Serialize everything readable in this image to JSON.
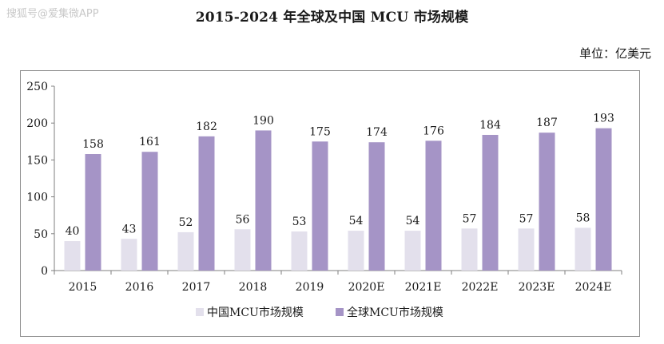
{
  "watermark": "搜狐号@爱集微APP",
  "chart_data": {
    "type": "bar",
    "title": "2015-2024 年全球及中国 MCU 市场规模",
    "unit_label": "单位：亿美元",
    "categories": [
      "2015",
      "2016",
      "2017",
      "2018",
      "2019",
      "2020E",
      "2021E",
      "2022E",
      "2023E",
      "2024E"
    ],
    "series": [
      {
        "name": "中国MCU市场规模",
        "values": [
          40,
          43,
          52,
          56,
          53,
          54,
          54,
          57,
          57,
          58
        ],
        "color": "#e3e0ec"
      },
      {
        "name": "全球MCU市场规模",
        "values": [
          158,
          161,
          182,
          190,
          175,
          174,
          176,
          184,
          187,
          193
        ],
        "color": "#a594c6"
      }
    ],
    "ylim": [
      0,
      250
    ],
    "yticks": [
      "0",
      "50",
      "100",
      "150",
      "200",
      "250"
    ],
    "grid": false,
    "legend_position": "bottom"
  }
}
